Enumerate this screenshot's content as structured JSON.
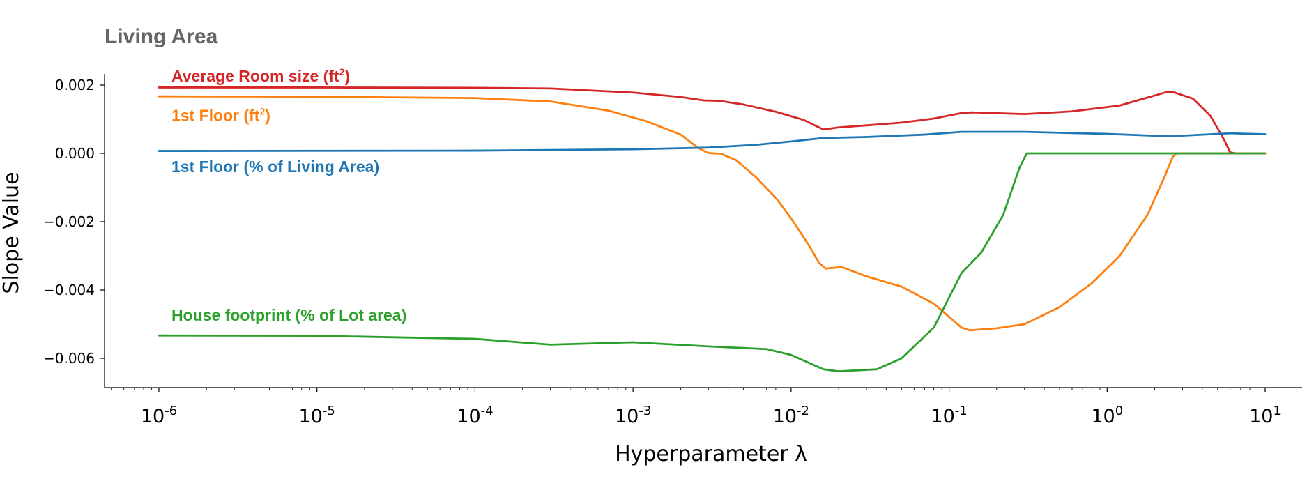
{
  "chart_data": {
    "type": "line",
    "title": "Living Area",
    "xlabel": "Hyperparameter λ",
    "ylabel": "Slope Value",
    "x_scale": "log",
    "xlim": [
      5e-07,
      20
    ],
    "ylim": [
      -0.0068,
      0.0023
    ],
    "x_ticks": [
      {
        "value": 1e-06,
        "base": "10",
        "exp": "-6"
      },
      {
        "value": 1e-05,
        "base": "10",
        "exp": "-5"
      },
      {
        "value": 0.0001,
        "base": "10",
        "exp": "-4"
      },
      {
        "value": 0.001,
        "base": "10",
        "exp": "-3"
      },
      {
        "value": 0.01,
        "base": "10",
        "exp": "-2"
      },
      {
        "value": 0.1,
        "base": "10",
        "exp": "-1"
      },
      {
        "value": 1,
        "base": "10",
        "exp": "0"
      },
      {
        "value": 10,
        "base": "10",
        "exp": "1"
      }
    ],
    "y_ticks": [
      {
        "value": 0.002,
        "label": "0.002"
      },
      {
        "value": 0.0,
        "label": "0.000"
      },
      {
        "value": -0.002,
        "label": "−0.002"
      },
      {
        "value": -0.004,
        "label": "−0.004"
      },
      {
        "value": -0.006,
        "label": "−0.006"
      }
    ],
    "grid": false,
    "legend": "inline labels",
    "series": [
      {
        "name": "Average Room size (ft²)",
        "label_main": "Average Room size (ft",
        "label_sup": "2",
        "label_end": ")",
        "color": "#d62728",
        "label_x": 1.2e-06,
        "label_y": 0.0021,
        "points": [
          [
            1e-06,
            0.00193
          ],
          [
            1e-05,
            0.00193
          ],
          [
            0.0001,
            0.00192
          ],
          [
            0.0003,
            0.0019
          ],
          [
            0.001,
            0.00178
          ],
          [
            0.002,
            0.00165
          ],
          [
            0.0028,
            0.00155
          ],
          [
            0.0035,
            0.00154
          ],
          [
            0.005,
            0.00143
          ],
          [
            0.008,
            0.00122
          ],
          [
            0.012,
            0.00098
          ],
          [
            0.016,
            0.0007
          ],
          [
            0.02,
            0.00076
          ],
          [
            0.03,
            0.00082
          ],
          [
            0.05,
            0.0009
          ],
          [
            0.08,
            0.00102
          ],
          [
            0.12,
            0.00118
          ],
          [
            0.14,
            0.0012
          ],
          [
            0.3,
            0.00115
          ],
          [
            0.6,
            0.00123
          ],
          [
            1.2,
            0.0014
          ],
          [
            2.4,
            0.0018
          ],
          [
            2.6,
            0.0018
          ],
          [
            3.5,
            0.0016
          ],
          [
            4.5,
            0.0011
          ],
          [
            5.5,
            0.0004
          ],
          [
            6,
            3e-05
          ],
          [
            6.5,
            0.0
          ],
          [
            10,
            0.0
          ]
        ]
      },
      {
        "name": "1st Floor (ft²)",
        "label_main": "1st Floor (ft",
        "label_sup": "2",
        "label_end": ")",
        "color": "#ff7f0e",
        "label_x": 1.2e-06,
        "label_y": 0.00095,
        "points": [
          [
            1e-06,
            0.00167
          ],
          [
            1e-05,
            0.00166
          ],
          [
            0.0001,
            0.00162
          ],
          [
            0.0003,
            0.00152
          ],
          [
            0.0007,
            0.00125
          ],
          [
            0.0012,
            0.00095
          ],
          [
            0.002,
            0.00055
          ],
          [
            0.0026,
            0.00015
          ],
          [
            0.003,
            1e-05
          ],
          [
            0.0036,
            -1e-05
          ],
          [
            0.0045,
            -0.0002
          ],
          [
            0.006,
            -0.0007
          ],
          [
            0.008,
            -0.0013
          ],
          [
            0.01,
            -0.0019
          ],
          [
            0.013,
            -0.0027
          ],
          [
            0.015,
            -0.0032
          ],
          [
            0.0165,
            -0.00337
          ],
          [
            0.021,
            -0.00333
          ],
          [
            0.03,
            -0.0036
          ],
          [
            0.05,
            -0.0039
          ],
          [
            0.08,
            -0.0044
          ],
          [
            0.12,
            -0.0051
          ],
          [
            0.135,
            -0.00518
          ],
          [
            0.2,
            -0.00512
          ],
          [
            0.3,
            -0.005
          ],
          [
            0.5,
            -0.0045
          ],
          [
            0.8,
            -0.0038
          ],
          [
            1.2,
            -0.003
          ],
          [
            1.8,
            -0.0018
          ],
          [
            2.3,
            -0.0007
          ],
          [
            2.6,
            -0.0001
          ],
          [
            2.75,
            0.0
          ],
          [
            10,
            0.0
          ]
        ]
      },
      {
        "name": "1st Floor (% of Living Area)",
        "label_main": "1st Floor (% of Living Area)",
        "label_sup": "",
        "label_end": "",
        "color": "#1f77b4",
        "label_x": 1.2e-06,
        "label_y": -0.00055,
        "points": [
          [
            1e-06,
            7e-05
          ],
          [
            0.0001,
            8e-05
          ],
          [
            0.001,
            0.00012
          ],
          [
            0.003,
            0.00017
          ],
          [
            0.006,
            0.00025
          ],
          [
            0.01,
            0.00035
          ],
          [
            0.016,
            0.00045
          ],
          [
            0.03,
            0.00048
          ],
          [
            0.07,
            0.00055
          ],
          [
            0.12,
            0.00063
          ],
          [
            0.3,
            0.00063
          ],
          [
            1,
            0.00057
          ],
          [
            2.5,
            0.0005
          ],
          [
            6,
            0.00059
          ],
          [
            10,
            0.00056
          ]
        ]
      },
      {
        "name": "House footprint (% of Lot area)",
        "label_main": "House footprint (% of Lot area)",
        "label_sup": "",
        "label_end": "",
        "color": "#2ca02c",
        "label_x": 1.2e-06,
        "label_y": -0.0049,
        "points": [
          [
            1e-06,
            -0.00533
          ],
          [
            1e-05,
            -0.00534
          ],
          [
            0.0001,
            -0.00543
          ],
          [
            0.0003,
            -0.0056
          ],
          [
            0.001,
            -0.00553
          ],
          [
            0.003,
            -0.00565
          ],
          [
            0.007,
            -0.00573
          ],
          [
            0.01,
            -0.0059
          ],
          [
            0.016,
            -0.00632
          ],
          [
            0.02,
            -0.00638
          ],
          [
            0.035,
            -0.00632
          ],
          [
            0.05,
            -0.006
          ],
          [
            0.08,
            -0.0051
          ],
          [
            0.12,
            -0.0035
          ],
          [
            0.16,
            -0.0029
          ],
          [
            0.22,
            -0.0018
          ],
          [
            0.28,
            -0.0004
          ],
          [
            0.31,
            0.0
          ],
          [
            10,
            0.0
          ]
        ]
      }
    ]
  }
}
